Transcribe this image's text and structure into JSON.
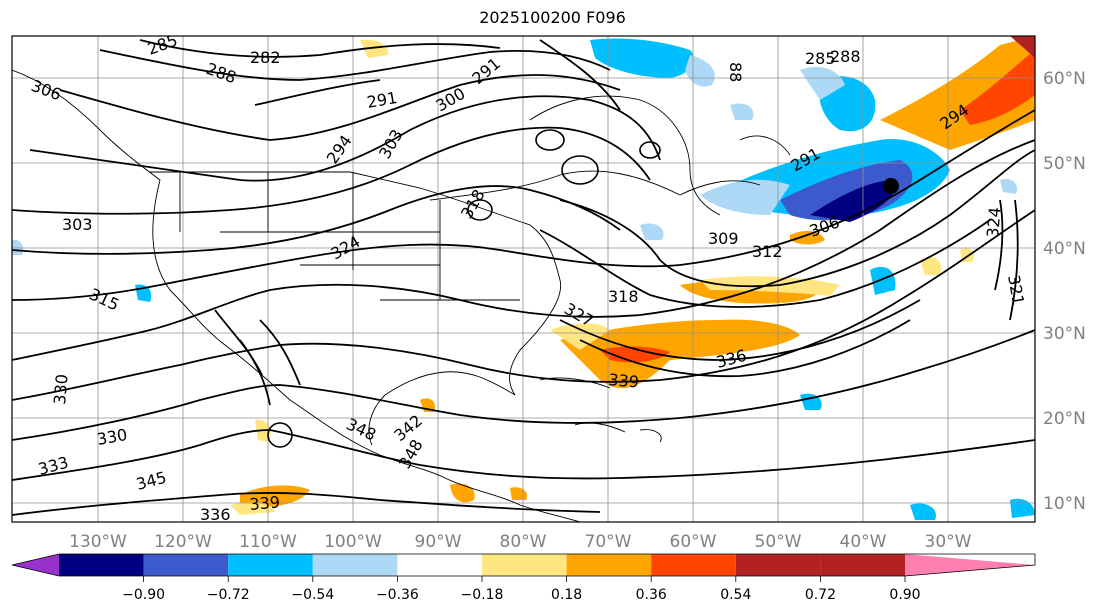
{
  "title": "2025100200 F096",
  "longitude_labels": [
    "130°W",
    "120°W",
    "110°W",
    "100°W",
    "90°W",
    "80°W",
    "70°W",
    "60°W",
    "50°W",
    "40°W",
    "30°W"
  ],
  "latitude_labels": [
    "60°N",
    "50°N",
    "40°N",
    "30°N",
    "20°N",
    "10°N"
  ],
  "colorbar": {
    "colors": [
      "#9932cc",
      "#000080",
      "#3d5acc",
      "#00bfff",
      "#add8f6",
      "#ffffff",
      "#ffe680",
      "#ffa500",
      "#ff4500",
      "#b22222",
      "#ff80b0"
    ],
    "tick_labels": [
      "−0.90",
      "−0.72",
      "−0.54",
      "−0.36",
      "−0.18",
      "0.18",
      "0.36",
      "0.54",
      "0.72",
      "0.90"
    ]
  },
  "contour_labels": [
    {
      "text": "285"
    },
    {
      "text": "282"
    },
    {
      "text": "288"
    },
    {
      "text": "291"
    },
    {
      "text": "291"
    },
    {
      "text": "300"
    },
    {
      "text": "294"
    },
    {
      "text": "303"
    },
    {
      "text": "306"
    },
    {
      "text": "303"
    },
    {
      "text": "315"
    },
    {
      "text": "324"
    },
    {
      "text": "318"
    },
    {
      "text": "327"
    },
    {
      "text": "339"
    },
    {
      "text": "336"
    },
    {
      "text": "309"
    },
    {
      "text": "312"
    },
    {
      "text": "318"
    },
    {
      "text": "291"
    },
    {
      "text": "294"
    },
    {
      "text": "306"
    },
    {
      "text": "324"
    },
    {
      "text": "321"
    },
    {
      "text": "330"
    },
    {
      "text": "330"
    },
    {
      "text": "333"
    },
    {
      "text": "345"
    },
    {
      "text": "348"
    },
    {
      "text": "342"
    },
    {
      "text": "348"
    },
    {
      "text": "339"
    },
    {
      "text": "336"
    },
    {
      "text": "285"
    },
    {
      "text": "288"
    },
    {
      "text": "88"
    }
  ]
}
